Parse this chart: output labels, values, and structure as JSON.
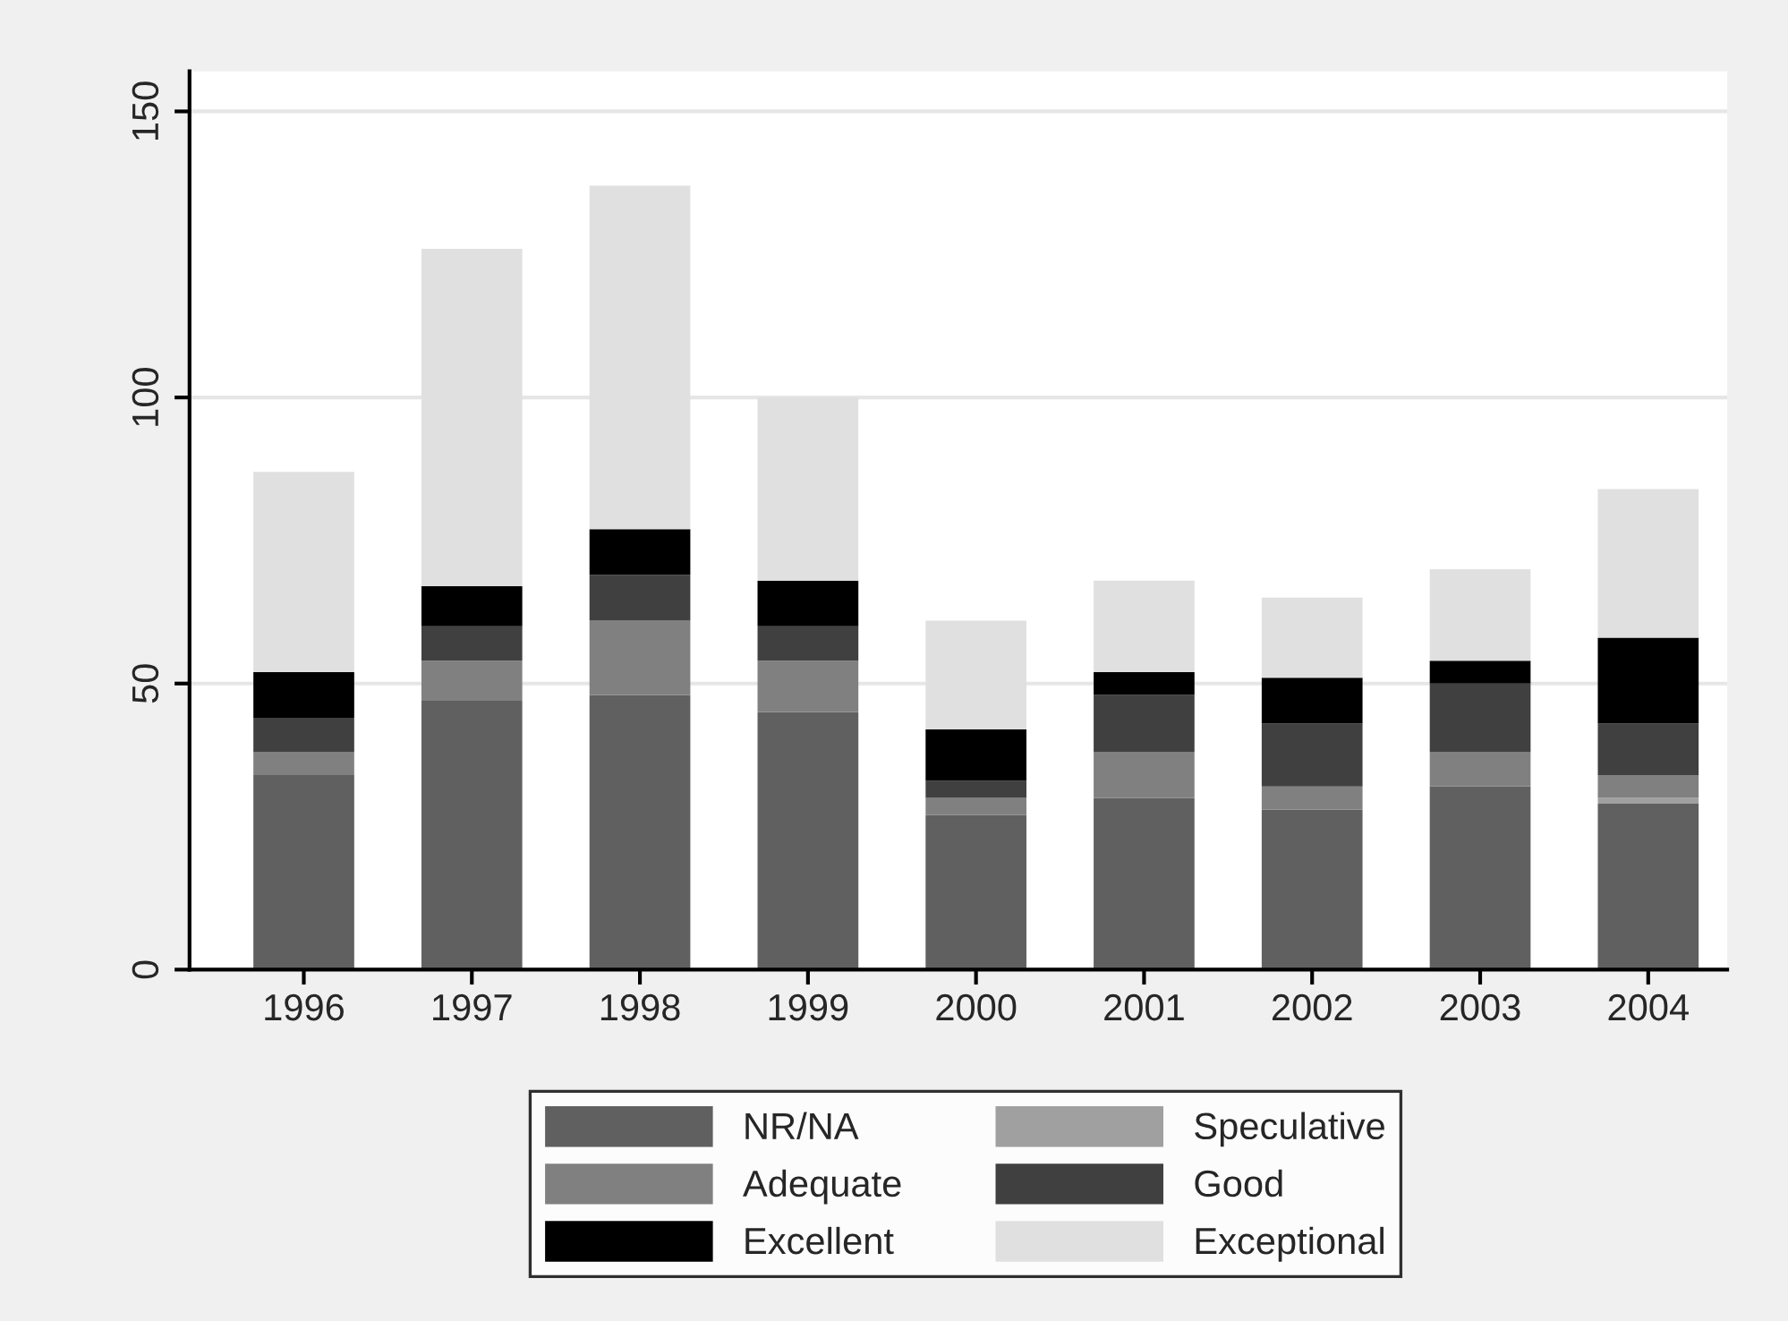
{
  "chart_data": {
    "type": "bar",
    "stacked": true,
    "categories": [
      "1996",
      "1997",
      "1998",
      "1999",
      "2000",
      "2001",
      "2002",
      "2003",
      "2004"
    ],
    "series": [
      {
        "name": "NR/NA",
        "color": "#606060",
        "values": [
          34,
          47,
          48,
          45,
          27,
          30,
          28,
          32,
          29
        ]
      },
      {
        "name": "Speculative",
        "color": "#a0a0a0",
        "values": [
          0,
          0,
          0,
          0,
          0,
          0,
          0,
          0,
          1
        ]
      },
      {
        "name": "Adequate",
        "color": "#808080",
        "values": [
          4,
          7,
          13,
          9,
          3,
          8,
          4,
          6,
          4
        ]
      },
      {
        "name": "Good",
        "color": "#404040",
        "values": [
          6,
          6,
          8,
          6,
          3,
          10,
          11,
          12,
          9
        ]
      },
      {
        "name": "Excellent",
        "color": "#000000",
        "values": [
          8,
          7,
          8,
          8,
          9,
          4,
          8,
          4,
          15
        ]
      },
      {
        "name": "Exceptional",
        "color": "#e0e0e0",
        "values": [
          35,
          59,
          60,
          32,
          19,
          16,
          14,
          16,
          26
        ]
      }
    ],
    "ylim": [
      0,
      157
    ],
    "yticks": [
      0,
      50,
      100,
      150
    ],
    "grid": "y",
    "legend": "bottom"
  }
}
